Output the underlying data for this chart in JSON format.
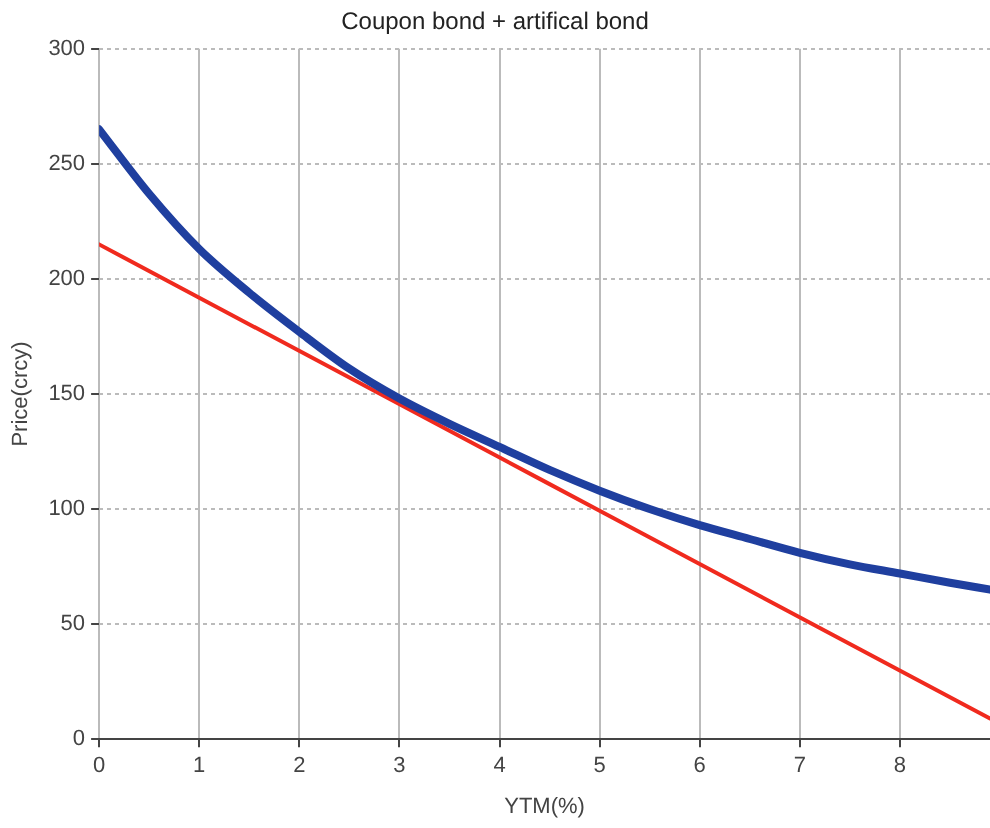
{
  "chart_data": {
    "type": "line",
    "title": "Coupon bond + artifical bond",
    "xlabel": "YTM(%)",
    "ylabel": "Price(crcy)",
    "xlim": [
      0,
      8.9
    ],
    "xticks": [
      0,
      1,
      2,
      3,
      4,
      5,
      6,
      7,
      8
    ],
    "ylim": [
      0,
      300
    ],
    "yticks": [
      0,
      50,
      100,
      150,
      200,
      250,
      300
    ],
    "grid": true,
    "legend": false,
    "marker": "none",
    "line_style": "solid",
    "series": [
      {
        "color": "#1f3f9f",
        "x": [
          0,
          0.5,
          1,
          1.5,
          2,
          2.5,
          3,
          3.5,
          4,
          4.5,
          5,
          5.5,
          6,
          6.5,
          7,
          7.5,
          8,
          8.5,
          8.9
        ],
        "values": [
          265,
          237,
          213,
          194,
          177,
          161,
          148,
          137,
          127,
          117,
          108,
          100,
          93,
          87,
          81,
          76,
          72,
          68,
          65
        ]
      },
      {
        "color": "#f02a1e",
        "x": [
          0,
          8.9
        ],
        "values": [
          215,
          9
        ]
      }
    ]
  }
}
